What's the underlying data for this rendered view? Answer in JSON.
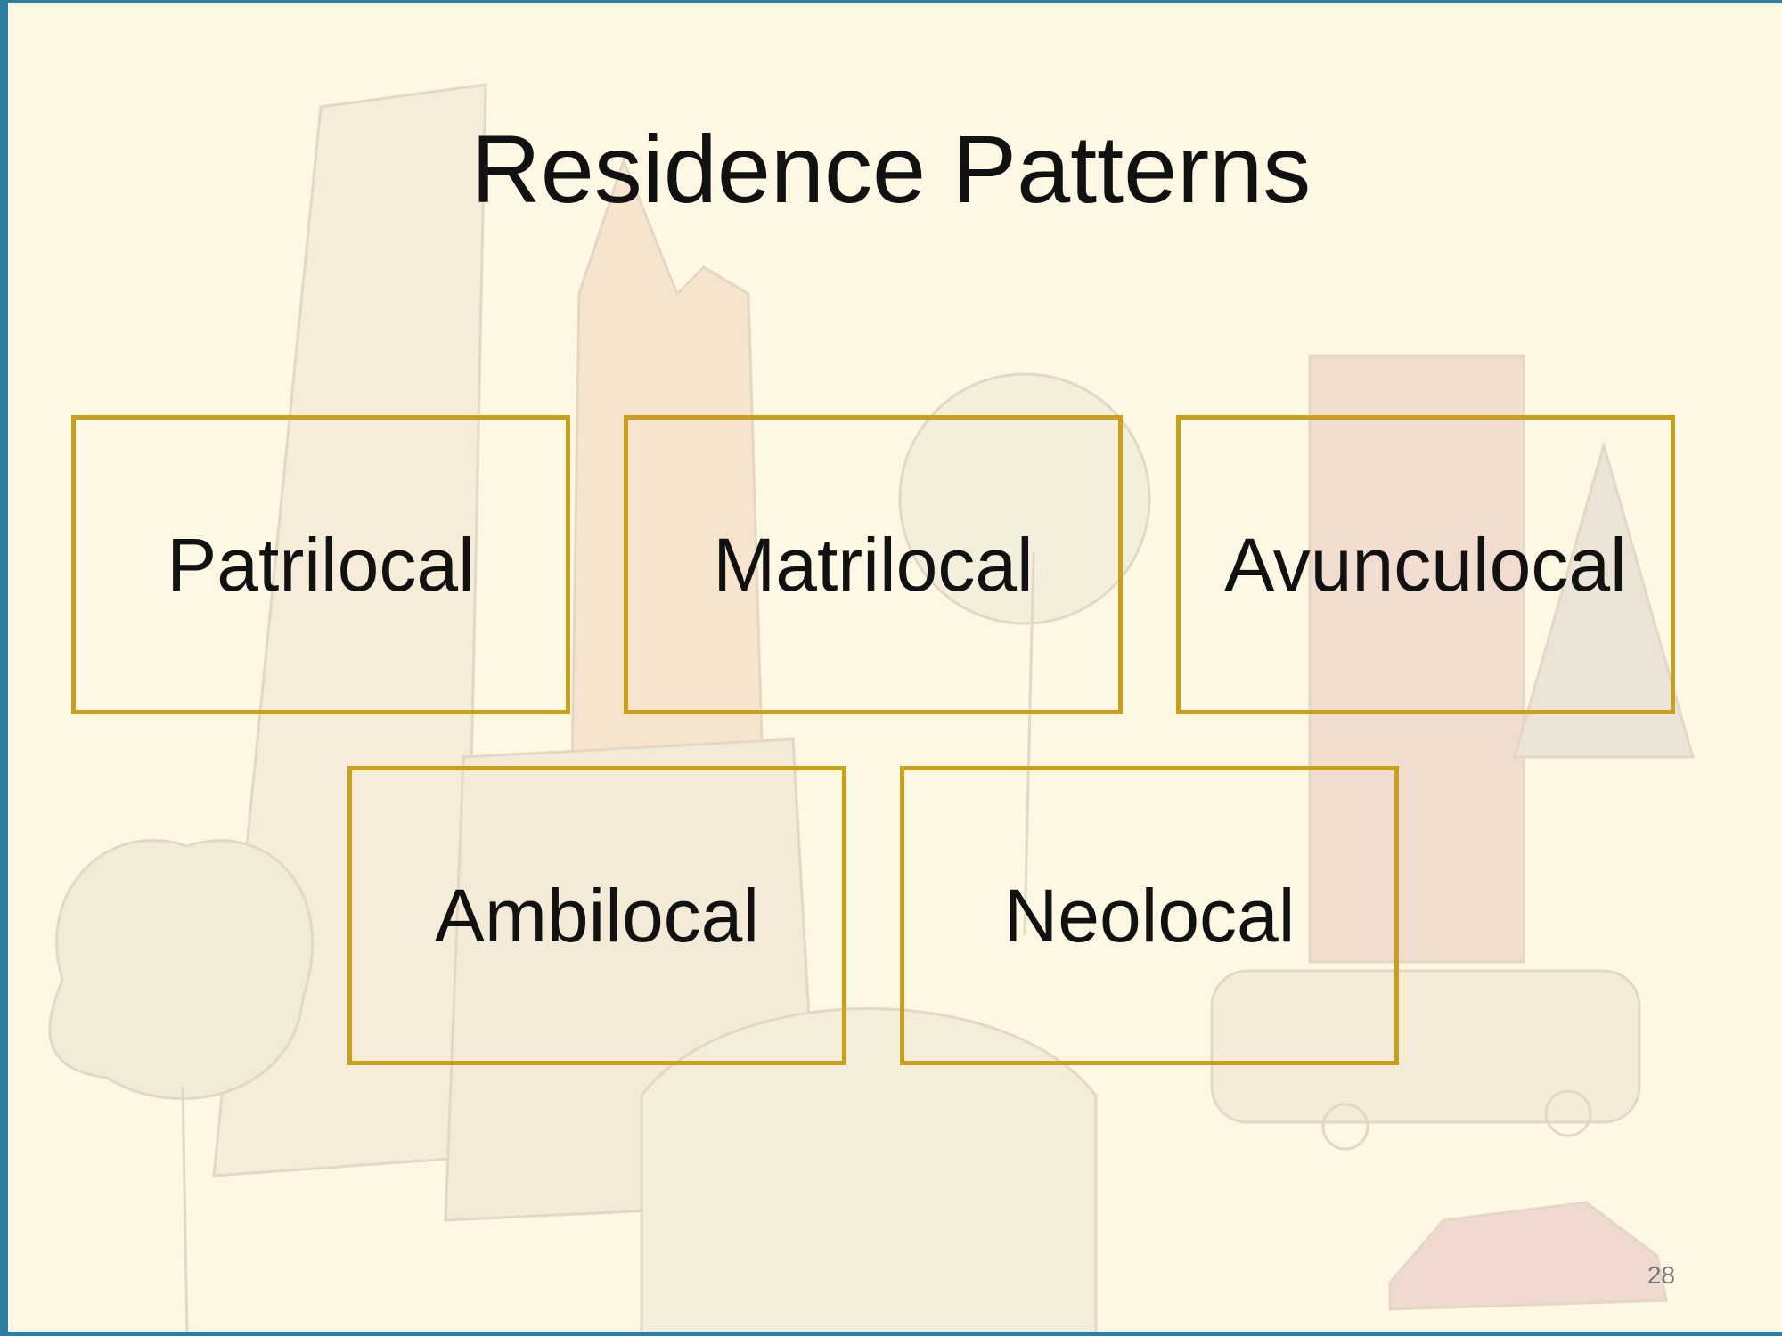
{
  "slide": {
    "title": "Residence Patterns",
    "page_number": "28"
  },
  "boxes": [
    {
      "label": "Patrilocal"
    },
    {
      "label": "Matrilocal"
    },
    {
      "label": "Avunculocal"
    },
    {
      "label": "Ambilocal"
    },
    {
      "label": "Neolocal"
    }
  ],
  "colors": {
    "background": "#fdf7e4",
    "box_border": "#c9a01a",
    "accent_frame": "#2b7fa0"
  }
}
